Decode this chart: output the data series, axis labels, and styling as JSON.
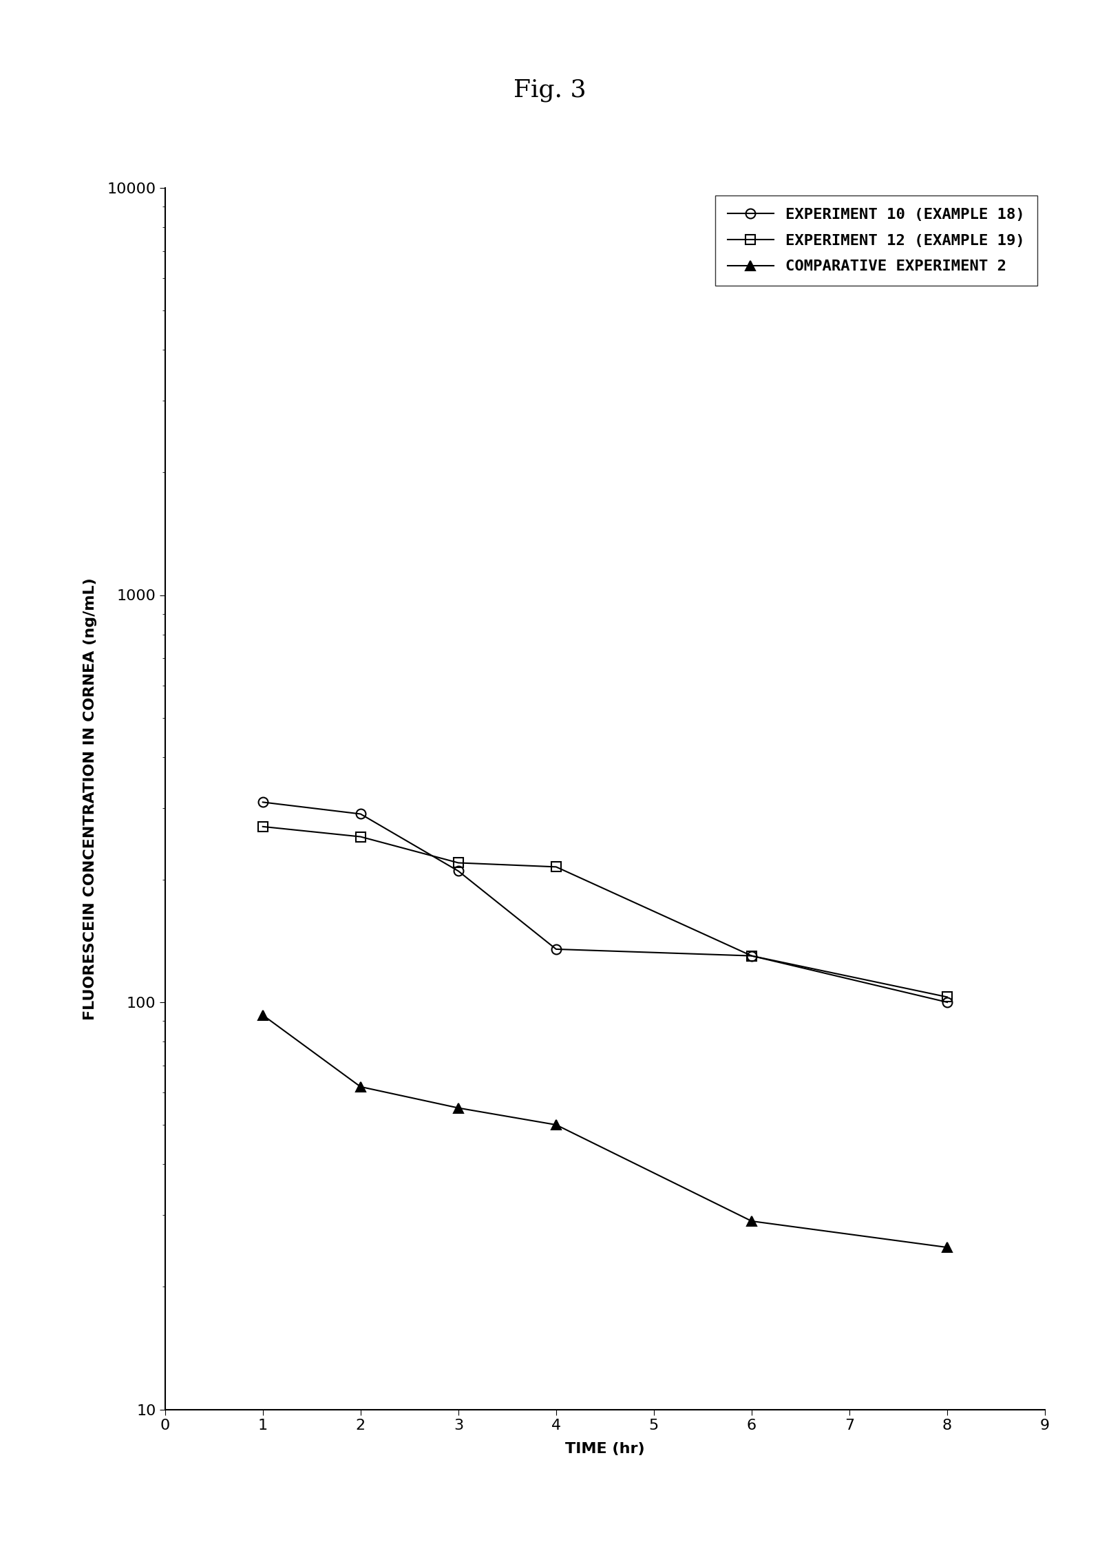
{
  "title": "Fig. 3",
  "xlabel": "TIME (hr)",
  "ylabel": "FLUORESCEIN CONCENTRATION IN CORNEA (ng/mL)",
  "series": [
    {
      "label": "EXPERIMENT 10 (EXAMPLE 18)",
      "x": [
        1,
        2,
        3,
        4,
        6,
        8
      ],
      "y": [
        310,
        290,
        210,
        135,
        130,
        100
      ],
      "marker": "o",
      "color": "#000000",
      "linewidth": 1.5,
      "markersize": 10,
      "fillstyle": "none",
      "markeredgewidth": 1.5
    },
    {
      "label": "EXPERIMENT 12 (EXAMPLE 19)",
      "x": [
        1,
        2,
        3,
        4,
        6,
        8
      ],
      "y": [
        270,
        255,
        220,
        215,
        130,
        103
      ],
      "marker": "s",
      "color": "#000000",
      "linewidth": 1.5,
      "markersize": 10,
      "fillstyle": "none",
      "markeredgewidth": 1.5
    },
    {
      "label": "COMPARATIVE EXPERIMENT 2",
      "x": [
        1,
        2,
        3,
        4,
        6,
        8
      ],
      "y": [
        93,
        62,
        55,
        50,
        29,
        25
      ],
      "marker": "^",
      "color": "#000000",
      "linewidth": 1.5,
      "markersize": 10,
      "fillstyle": "full",
      "markeredgewidth": 1.5
    }
  ],
  "xlim": [
    0,
    9
  ],
  "ylim_log": [
    10,
    10000
  ],
  "xticks": [
    0,
    1,
    2,
    3,
    4,
    5,
    6,
    7,
    8,
    9
  ],
  "background_color": "#ffffff",
  "title_fontsize": 26,
  "axis_label_fontsize": 16,
  "tick_fontsize": 16,
  "legend_fontsize": 16
}
